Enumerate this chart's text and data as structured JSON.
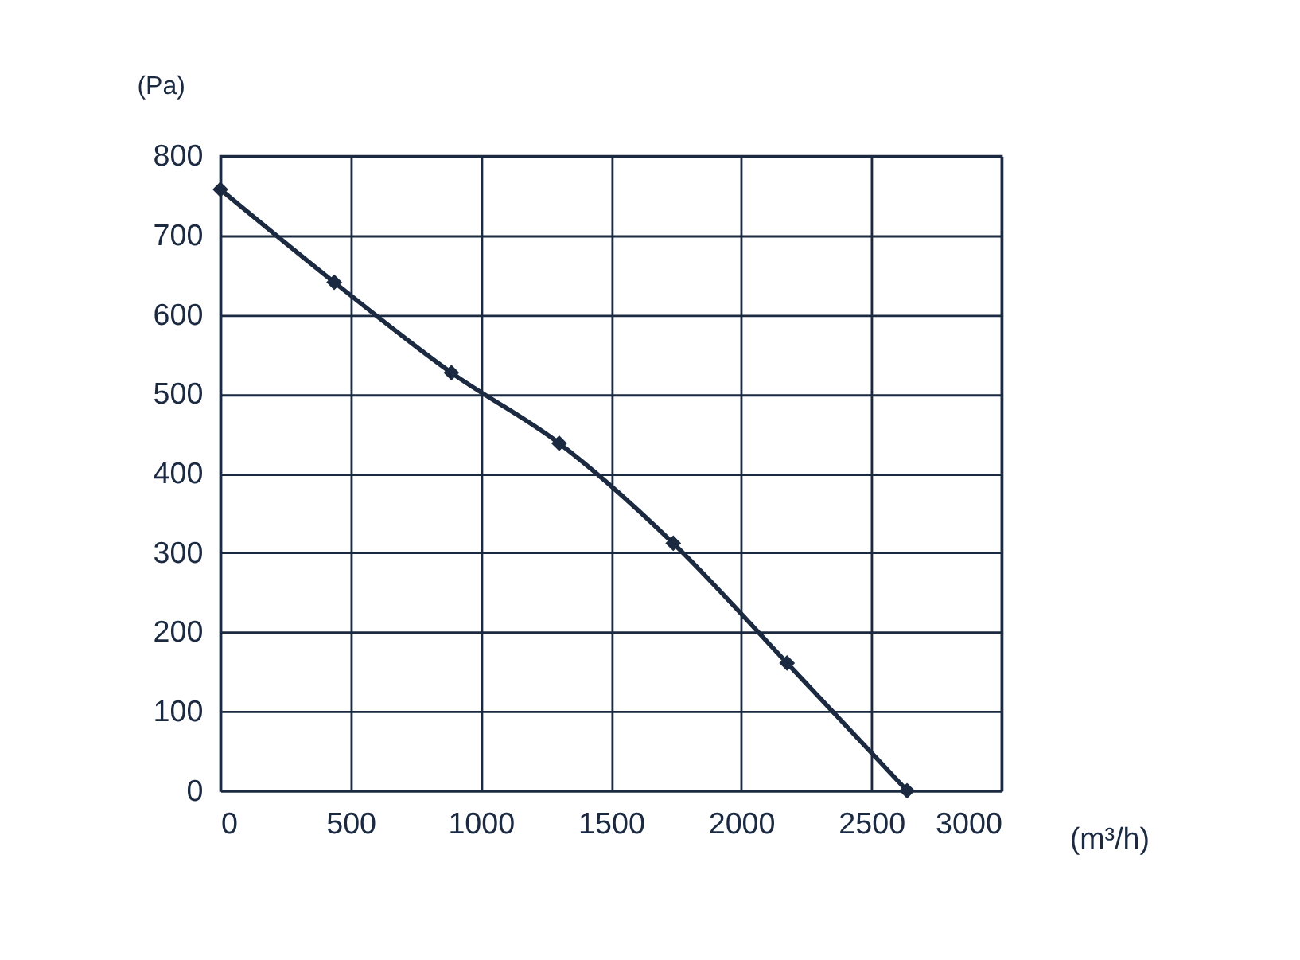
{
  "chart_data": {
    "type": "line",
    "xlabel": "(m³/h)",
    "ylabel": "(Pa)",
    "series": [
      {
        "color": "#1b2a40",
        "x": [
          0,
          437,
          887,
          1301,
          1739,
          2176,
          2637
        ],
        "values": [
          758,
          641,
          527,
          438,
          312,
          161,
          0
        ]
      }
    ],
    "xlim": [
      0,
      3000
    ],
    "xticks": [
      0,
      500,
      1000,
      1500,
      2000,
      2500,
      3000
    ],
    "ylim": [
      0,
      800
    ],
    "yticks": [
      0,
      100,
      200,
      300,
      400,
      500,
      600,
      700,
      800
    ],
    "grid": true,
    "marker": "diamond",
    "line_style": "solid"
  }
}
